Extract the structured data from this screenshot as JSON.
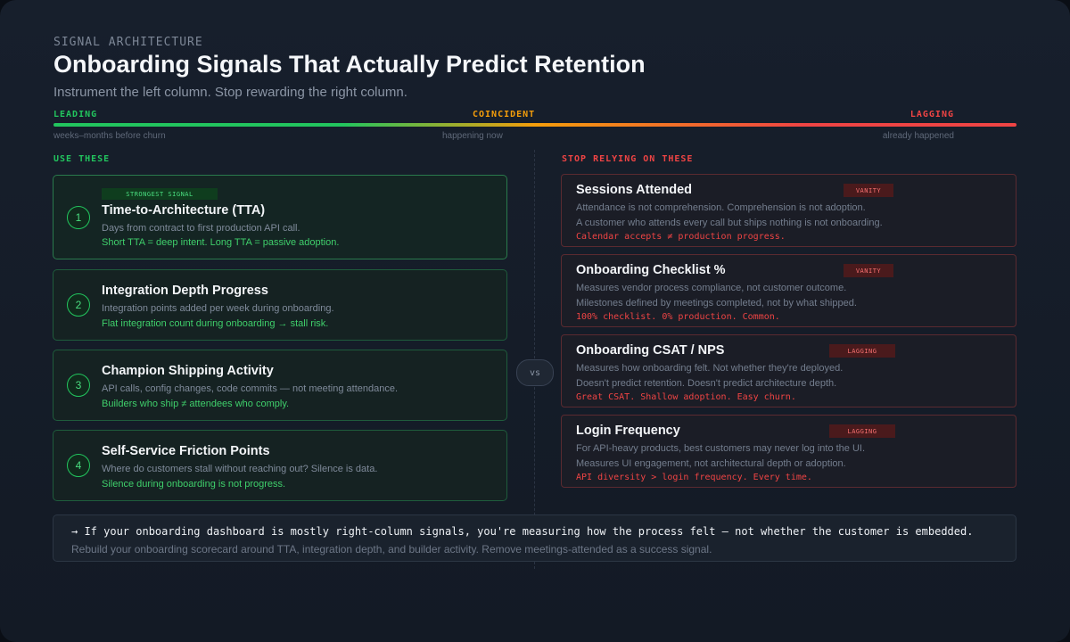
{
  "header": {
    "eyebrow": "SIGNAL ARCHITECTURE",
    "title": "Onboarding Signals That Actually Predict Retention",
    "subtitle": "Instrument the left column. Stop rewarding the right column."
  },
  "scale": {
    "leading": "LEADING",
    "coincident": "COINCIDENT",
    "lagging": "LAGGING",
    "leading_sub": "weeks–months before churn",
    "coincident_sub": "happening now",
    "lagging_sub": "already happened",
    "colors": {
      "leading": "#22c55e",
      "coincident": "#f59e0b",
      "lagging": "#ef4444"
    }
  },
  "left": {
    "heading": "USE THESE",
    "cards": [
      {
        "num": "1",
        "badge": "STRONGEST SIGNAL",
        "title": "Time-to-Architecture (TTA)",
        "desc": "Days from contract to first production API call.",
        "takeaway": "Short TTA = deep intent. Long TTA = passive adoption."
      },
      {
        "num": "2",
        "title": "Integration Depth Progress",
        "desc": "Integration points added per week during onboarding.",
        "takeaway": "Flat integration count during onboarding → stall risk."
      },
      {
        "num": "3",
        "title": "Champion Shipping Activity",
        "desc": "API calls, config changes, code commits — not meeting attendance.",
        "takeaway": "Builders who ship ≠ attendees who comply."
      },
      {
        "num": "4",
        "title": "Self-Service Friction Points",
        "desc": "Where do customers stall without reaching out? Silence is data.",
        "takeaway": "Silence during onboarding is not progress."
      }
    ]
  },
  "vs": "vs",
  "right": {
    "heading": "STOP RELYING ON THESE",
    "cards": [
      {
        "title": "Sessions Attended",
        "badge": "VANITY",
        "desc1": "Attendance is not comprehension. Comprehension is not adoption.",
        "desc2": "A customer who attends every call but ships nothing is not onboarding.",
        "takeaway": "Calendar accepts ≠ production progress."
      },
      {
        "title": "Onboarding Checklist %",
        "badge": "VANITY",
        "desc1": "Measures vendor process compliance, not customer outcome.",
        "desc2": "Milestones defined by meetings completed, not by what shipped.",
        "takeaway": "100% checklist. 0% production. Common."
      },
      {
        "title": "Onboarding CSAT / NPS",
        "badge": "LAGGING",
        "desc1": "Measures how onboarding felt. Not whether they're deployed.",
        "desc2": "Doesn't predict retention. Doesn't predict architecture depth.",
        "takeaway": "Great CSAT. Shallow adoption. Easy churn."
      },
      {
        "title": "Login Frequency",
        "badge": "LAGGING",
        "desc1": "For API-heavy products, best customers may never log into the UI.",
        "desc2": "Measures UI engagement, not architectural depth or adoption.",
        "takeaway": "API diversity > login frequency. Every time."
      }
    ]
  },
  "footer": {
    "line1": "→  If your onboarding dashboard is mostly right-column signals, you're measuring how the process felt — not whether the customer is embedded.",
    "line2": "Rebuild your onboarding scorecard around TTA, integration depth, and builder activity. Remove meetings-attended as a success signal."
  }
}
